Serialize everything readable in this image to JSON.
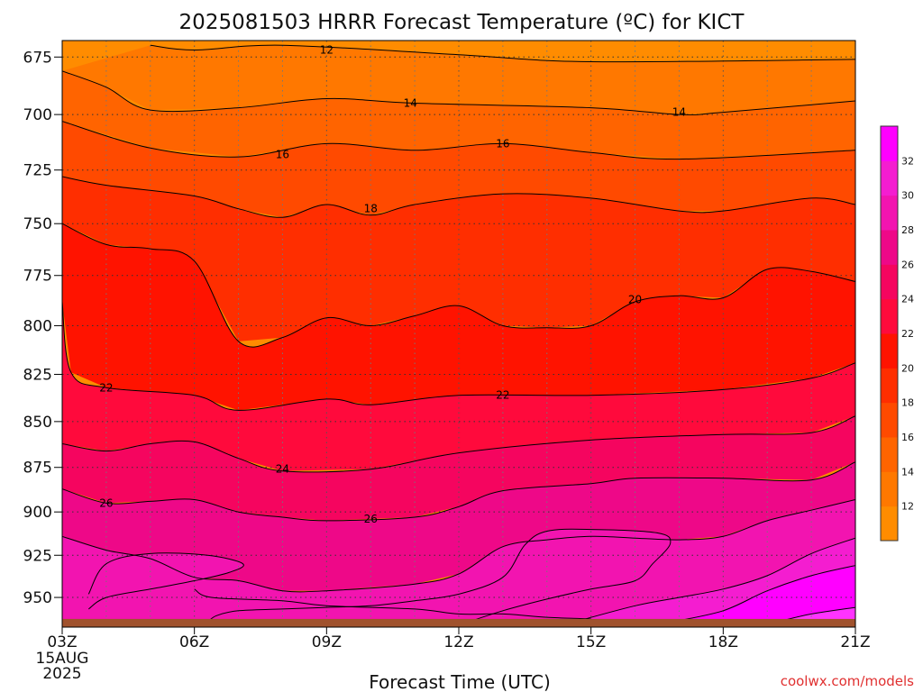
{
  "chart_data": {
    "type": "heatmap",
    "title": "2025081503 HRRR Forecast Temperature (ºC) for KICT",
    "xlabel": "Forecast Time (UTC)",
    "ylabel": "",
    "x_ticks": [
      "03Z",
      "06Z",
      "09Z",
      "12Z",
      "15Z",
      "18Z",
      "21Z"
    ],
    "x_start_label": [
      "15AUG",
      "2025"
    ],
    "xlim": [
      3,
      21
    ],
    "y_ticks": [
      675,
      700,
      725,
      750,
      775,
      800,
      825,
      850,
      875,
      900,
      925,
      950
    ],
    "ylim": [
      968,
      668
    ],
    "y_scale": "log-pressure (inverted)",
    "grid": true,
    "colorbar": {
      "placement": "right",
      "levels": [
        10,
        12,
        14,
        16,
        18,
        20,
        22,
        24,
        26,
        28,
        30,
        32,
        34
      ],
      "tick_labels": [
        "12",
        "14",
        "16",
        "18",
        "20",
        "22",
        "24",
        "26",
        "28",
        "30",
        "32"
      ],
      "colors": [
        "#ff8c00",
        "#ff7800",
        "#ff6400",
        "#ff4a00",
        "#ff2e00",
        "#ff1300",
        "#ff0a3c",
        "#f5055f",
        "#ee0888",
        "#f214b0",
        "#f41dd0",
        "#ff00ff"
      ]
    },
    "contours": [
      {
        "value": 12,
        "label": "12",
        "points": [
          [
            5,
            670
          ],
          [
            6,
            672
          ],
          [
            8,
            670
          ],
          [
            12,
            674
          ],
          [
            15,
            677
          ],
          [
            21,
            676
          ]
        ]
      },
      {
        "value": 14,
        "label": "14",
        "points": [
          [
            3,
            681
          ],
          [
            4,
            688
          ],
          [
            5,
            698
          ],
          [
            7,
            697
          ],
          [
            9,
            693
          ],
          [
            11,
            695
          ],
          [
            15,
            697
          ],
          [
            17,
            700
          ],
          [
            18,
            699
          ],
          [
            21,
            694
          ]
        ]
      },
      {
        "value": 16,
        "label": "16",
        "points": [
          [
            3,
            703
          ],
          [
            5,
            715
          ],
          [
            7,
            719
          ],
          [
            9,
            713
          ],
          [
            11,
            716
          ],
          [
            13,
            713
          ],
          [
            15,
            717
          ],
          [
            17,
            720
          ],
          [
            21,
            716
          ]
        ]
      },
      {
        "value": 18,
        "label": "18",
        "points": [
          [
            3,
            728
          ],
          [
            4,
            732
          ],
          [
            6,
            737
          ],
          [
            7,
            743
          ],
          [
            8,
            747
          ],
          [
            9,
            741
          ],
          [
            10,
            746
          ],
          [
            11,
            741
          ],
          [
            13,
            736
          ],
          [
            15,
            738
          ],
          [
            17,
            744
          ],
          [
            18,
            744
          ],
          [
            20,
            738
          ],
          [
            21,
            741
          ]
        ]
      },
      {
        "value": 20,
        "label": "20",
        "points": [
          [
            3,
            750
          ],
          [
            4,
            760
          ],
          [
            5,
            762
          ],
          [
            6,
            768
          ],
          [
            7,
            808
          ],
          [
            8,
            806
          ],
          [
            9,
            796
          ],
          [
            10,
            800
          ],
          [
            11,
            795
          ],
          [
            12,
            790
          ],
          [
            13,
            800
          ],
          [
            14,
            801
          ],
          [
            15,
            800
          ],
          [
            16,
            788
          ],
          [
            17,
            785
          ],
          [
            18,
            786
          ],
          [
            19,
            772
          ],
          [
            20,
            773
          ],
          [
            21,
            778
          ]
        ]
      },
      {
        "value": 22,
        "label": "22",
        "points": [
          [
            3,
            788
          ],
          [
            3.2,
            824
          ],
          [
            4,
            832
          ],
          [
            6,
            836
          ],
          [
            7,
            844
          ],
          [
            9,
            838
          ],
          [
            10,
            841
          ],
          [
            12,
            836
          ],
          [
            15,
            836
          ],
          [
            18,
            833
          ],
          [
            20,
            827
          ],
          [
            21,
            819
          ]
        ]
      },
      {
        "value": 24,
        "label": "24",
        "points": [
          [
            3,
            862
          ],
          [
            4,
            866
          ],
          [
            5,
            862
          ],
          [
            6,
            861
          ],
          [
            7,
            870
          ],
          [
            8,
            877
          ],
          [
            10,
            876
          ],
          [
            12,
            867
          ],
          [
            15,
            860
          ],
          [
            18,
            857
          ],
          [
            20,
            856
          ],
          [
            21,
            847
          ]
        ]
      },
      {
        "value": 26,
        "label": "26",
        "points": [
          [
            3,
            887
          ],
          [
            4,
            895
          ],
          [
            5,
            894
          ],
          [
            6,
            893
          ],
          [
            7,
            900
          ],
          [
            8,
            903
          ],
          [
            9,
            905
          ],
          [
            11,
            903
          ],
          [
            12,
            897
          ],
          [
            13,
            888
          ],
          [
            15,
            884
          ],
          [
            16,
            881
          ],
          [
            18,
            881
          ],
          [
            20,
            882
          ],
          [
            21,
            872
          ]
        ]
      },
      {
        "value": 28,
        "label": "",
        "points": [
          [
            3,
            914
          ],
          [
            4,
            922
          ],
          [
            5,
            927
          ],
          [
            6,
            938
          ],
          [
            7,
            940
          ],
          [
            8,
            946
          ],
          [
            9,
            946
          ],
          [
            11,
            942
          ],
          [
            12,
            936
          ],
          [
            13,
            920
          ],
          [
            14,
            916
          ],
          [
            15,
            914
          ],
          [
            16,
            915
          ],
          [
            17,
            916
          ],
          [
            18,
            914
          ],
          [
            19,
            905
          ],
          [
            20,
            899
          ],
          [
            21,
            893
          ]
        ]
      },
      {
        "value": 28,
        "label": "",
        "points": [
          [
            6,
            945
          ],
          [
            6.4,
            950
          ],
          [
            8,
            952
          ],
          [
            9,
            955
          ],
          [
            11,
            957
          ],
          [
            12,
            960
          ],
          [
            13,
            960
          ],
          [
            14,
            962
          ],
          [
            15,
            963
          ]
        ]
      },
      {
        "value": 30,
        "label": "",
        "points": [
          [
            3.6,
            957
          ],
          [
            4,
            950
          ],
          [
            5,
            945
          ],
          [
            6,
            940
          ],
          [
            6.8,
            935
          ],
          [
            7.1,
            930
          ],
          [
            6.3,
            925
          ],
          [
            5,
            924
          ],
          [
            4,
            930
          ],
          [
            3.6,
            948
          ]
        ]
      },
      {
        "value": 30,
        "label": "",
        "points": [
          [
            14.6,
            965
          ],
          [
            16,
            955
          ],
          [
            17,
            950
          ],
          [
            18,
            945
          ],
          [
            19,
            937
          ],
          [
            20,
            924
          ],
          [
            21,
            915
          ]
        ]
      },
      {
        "value": 30,
        "label": "",
        "points": [
          [
            12.2,
            965
          ],
          [
            13,
            958
          ],
          [
            14,
            951
          ],
          [
            15,
            945
          ],
          [
            16,
            940
          ],
          [
            16.4,
            930
          ],
          [
            16.8,
            918
          ],
          [
            16.5,
            912
          ],
          [
            15,
            910
          ],
          [
            14,
            911
          ],
          [
            13.5,
            919
          ],
          [
            13,
            938
          ],
          [
            12,
            948
          ],
          [
            11,
            952
          ],
          [
            10,
            955
          ],
          [
            9,
            956
          ],
          [
            8,
            957
          ],
          [
            7,
            958
          ],
          [
            6.5,
            961
          ],
          [
            6.3,
            965
          ]
        ]
      },
      {
        "value": 32,
        "label": "",
        "points": [
          [
            16.8,
            965
          ],
          [
            18,
            958
          ],
          [
            19,
            946
          ],
          [
            20,
            937
          ],
          [
            21,
            931
          ]
        ]
      },
      {
        "value": 34,
        "label": "",
        "points": [
          [
            19.2,
            965
          ],
          [
            20,
            960
          ],
          [
            21,
            956
          ]
        ]
      }
    ],
    "contour_labels": [
      {
        "text": "12",
        "x": 9.0,
        "p": 672
      },
      {
        "text": "14",
        "x": 10.9,
        "p": 695
      },
      {
        "text": "14",
        "x": 17.0,
        "p": 699
      },
      {
        "text": "16",
        "x": 8.0,
        "p": 718
      },
      {
        "text": "16",
        "x": 13.0,
        "p": 713
      },
      {
        "text": "18",
        "x": 10.0,
        "p": 743
      },
      {
        "text": "20",
        "x": 16.0,
        "p": 787
      },
      {
        "text": "22",
        "x": 4.0,
        "p": 832
      },
      {
        "text": "22",
        "x": 13.0,
        "p": 836
      },
      {
        "text": "24",
        "x": 8.0,
        "p": 876
      },
      {
        "text": "26",
        "x": 4.0,
        "p": 895
      },
      {
        "text": "26",
        "x": 10.0,
        "p": 904
      }
    ],
    "terrain": {
      "surface_pressure": 963,
      "color": "#a0522d"
    },
    "credit": "coolwx.com/models"
  }
}
